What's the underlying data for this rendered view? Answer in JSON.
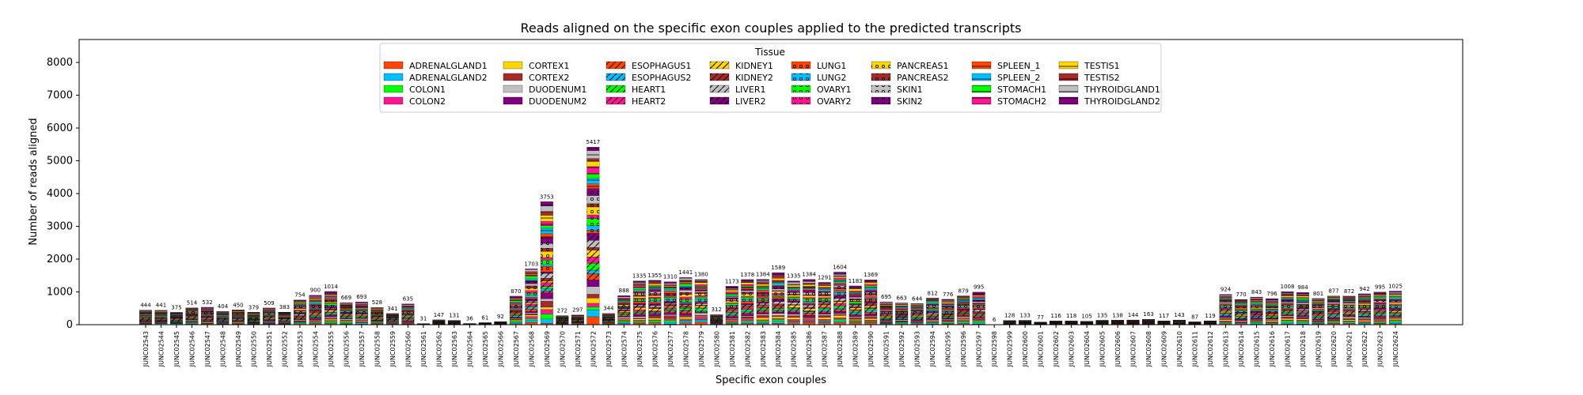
{
  "chart_data": {
    "type": "bar",
    "stacked": true,
    "title": "Reads aligned on the specific exon couples applied to the predicted transcripts",
    "xlabel": "Specific exon couples",
    "ylabel": "Number of reads aligned",
    "ylim": [
      0,
      8700
    ],
    "yticks": [
      0,
      1000,
      2000,
      3000,
      4000,
      5000,
      6000,
      7000,
      8000
    ],
    "legend_title": "Tissue",
    "legend_position": "top-center",
    "tissues": [
      "ADRENALGLAND1",
      "ADRENALGLAND2",
      "COLON1",
      "COLON2",
      "CORTEX1",
      "CORTEX2",
      "DUODENUM1",
      "DUODENUM2",
      "ESOPHAGUS1",
      "ESOPHAGUS2",
      "HEART1",
      "HEART2",
      "KIDNEY1",
      "KIDNEY2",
      "LIVER1",
      "LIVER2",
      "LUNG1",
      "LUNG2",
      "OVARY1",
      "OVARY2",
      "PANCREAS1",
      "PANCREAS2",
      "SKIN1",
      "SKIN2",
      "SPLEEN_1",
      "SPLEEN_2",
      "STOMACH1",
      "STOMACH2",
      "TESTIS1",
      "TESTIS2",
      "THYROIDGLAND1",
      "THYROIDGLAND2"
    ],
    "categories": [
      "JUNC02543",
      "JUNC02544",
      "JUNC02545",
      "JUNC02546",
      "JUNC02547",
      "JUNC02548",
      "JUNC02549",
      "JUNC02550",
      "JUNC02551",
      "JUNC02552",
      "JUNC02553",
      "JUNC02554",
      "JUNC02555",
      "JUNC02556",
      "JUNC02557",
      "JUNC02558",
      "JUNC02559",
      "JUNC02560",
      "JUNC02561",
      "JUNC02562",
      "JUNC02563",
      "JUNC02564",
      "JUNC02565",
      "JUNC02566",
      "JUNC02567",
      "JUNC02568",
      "JUNC02569",
      "JUNC02570",
      "JUNC02571",
      "JUNC02572",
      "JUNC02573",
      "JUNC02574",
      "JUNC02575",
      "JUNC02576",
      "JUNC02577",
      "JUNC02578",
      "JUNC02579",
      "JUNC02580",
      "JUNC02581",
      "JUNC02582",
      "JUNC02583",
      "JUNC02584",
      "JUNC02585",
      "JUNC02586",
      "JUNC02587",
      "JUNC02588",
      "JUNC02589",
      "JUNC02590",
      "JUNC02591",
      "JUNC02592",
      "JUNC02593",
      "JUNC02594",
      "JUNC02595",
      "JUNC02596",
      "JUNC02597",
      "JUNC02598",
      "JUNC02599",
      "JUNC02600",
      "JUNC02601",
      "JUNC02602",
      "JUNC02603",
      "JUNC02604",
      "JUNC02605",
      "JUNC02606",
      "JUNC02607",
      "JUNC02608",
      "JUNC02609",
      "JUNC02610",
      "JUNC02611",
      "JUNC02612",
      "JUNC02613",
      "JUNC02614",
      "JUNC02615",
      "JUNC02616",
      "JUNC02617",
      "JUNC02618",
      "JUNC02619",
      "JUNC02620",
      "JUNC02621",
      "JUNC02622",
      "JUNC02623",
      "JUNC02624"
    ],
    "totals": [
      444,
      441,
      375,
      514,
      532,
      404,
      450,
      379,
      509,
      383,
      754,
      900,
      1014,
      669,
      693,
      528,
      341,
      635,
      31,
      147,
      131,
      36,
      61,
      92,
      870,
      1703,
      3753,
      272,
      297,
      5417,
      344,
      888,
      1335,
      1355,
      1310,
      1441,
      1380,
      312,
      1173,
      1378,
      1384,
      1589,
      1335,
      1384,
      1291,
      1604,
      1183,
      1369,
      695,
      663,
      644,
      812,
      776,
      879,
      995,
      6,
      128,
      133,
      77,
      116,
      118,
      105,
      135,
      138,
      144,
      163,
      117,
      143,
      87,
      119,
      924,
      770,
      843,
      796,
      1008,
      984,
      801,
      877,
      872,
      942,
      995,
      1025
    ],
    "totals_note": "Per-tissue segment values are not labeled in the figure; only the bar totals are printed above each bar."
  },
  "palette": [
    "#ff4500",
    "#00bfff",
    "#00ff00",
    "#ff1493",
    "#ffd700",
    "#a52a2a",
    "#c0c0c0",
    "#800080",
    "#ff4500",
    "#00bfff",
    "#00ff00",
    "#ff1493",
    "#ffd700",
    "#a52a2a",
    "#c0c0c0",
    "#800080",
    "#ff4500",
    "#00bfff",
    "#00ff00",
    "#ff1493",
    "#ffd700",
    "#a52a2a",
    "#c0c0c0",
    "#800080",
    "#ff4500",
    "#00bfff",
    "#00ff00",
    "#ff1493",
    "#ffd700",
    "#a52a2a",
    "#c0c0c0",
    "#800080"
  ]
}
